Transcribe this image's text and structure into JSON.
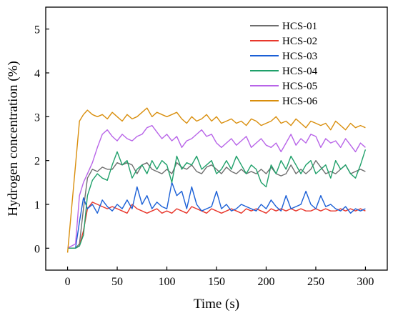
{
  "chart_data": {
    "type": "line",
    "title": "",
    "xlabel": "Time (s)",
    "ylabel": "Hydrogen concentration (%)",
    "xlim": [
      -22,
      322
    ],
    "ylim": [
      -0.5,
      5.5
    ],
    "xticks": [
      0,
      50,
      100,
      150,
      200,
      250,
      300
    ],
    "yticks": [
      0,
      1,
      2,
      3,
      4,
      5
    ],
    "grid": false,
    "legend_position": "top-right",
    "series": [
      {
        "name": "HCS-01",
        "color": "#6e6e6e",
        "x": [
          0,
          8,
          12,
          16,
          20,
          25,
          30,
          35,
          40,
          45,
          50,
          55,
          60,
          65,
          70,
          75,
          80,
          85,
          90,
          95,
          100,
          105,
          110,
          115,
          120,
          125,
          130,
          135,
          140,
          145,
          150,
          155,
          160,
          165,
          170,
          175,
          180,
          185,
          190,
          195,
          200,
          205,
          210,
          215,
          220,
          225,
          230,
          235,
          240,
          245,
          250,
          255,
          260,
          265,
          270,
          275,
          280,
          285,
          290,
          295,
          300
        ],
        "y": [
          0,
          0,
          0.1,
          0.9,
          1.6,
          1.8,
          1.75,
          1.85,
          1.8,
          1.8,
          1.95,
          1.9,
          1.95,
          1.9,
          1.7,
          1.9,
          1.95,
          1.8,
          1.75,
          1.7,
          1.8,
          1.7,
          1.95,
          1.85,
          1.8,
          1.9,
          1.75,
          1.7,
          1.85,
          1.9,
          1.8,
          1.7,
          1.85,
          1.75,
          1.7,
          1.8,
          1.7,
          1.75,
          1.7,
          1.8,
          1.7,
          1.85,
          1.7,
          1.65,
          1.7,
          1.9,
          1.7,
          1.8,
          1.7,
          1.8,
          2.0,
          1.85,
          1.7,
          1.75,
          1.7,
          1.8,
          1.9,
          1.7,
          1.75,
          1.8,
          1.75
        ]
      },
      {
        "name": "HCS-02",
        "color": "#e8372c",
        "x": [
          0,
          8,
          12,
          16,
          20,
          25,
          30,
          35,
          40,
          45,
          50,
          55,
          60,
          65,
          70,
          75,
          80,
          85,
          90,
          95,
          100,
          105,
          110,
          115,
          120,
          125,
          130,
          135,
          140,
          145,
          150,
          155,
          160,
          165,
          170,
          175,
          180,
          185,
          190,
          195,
          200,
          205,
          210,
          215,
          220,
          225,
          230,
          235,
          240,
          245,
          250,
          255,
          260,
          265,
          270,
          275,
          280,
          285,
          290,
          295,
          300
        ],
        "y": [
          0,
          0,
          0.05,
          0.4,
          0.9,
          1.05,
          1.0,
          0.95,
          0.9,
          0.95,
          0.9,
          0.85,
          0.8,
          1.0,
          0.9,
          0.85,
          0.8,
          0.85,
          0.9,
          0.8,
          0.85,
          0.8,
          0.9,
          0.85,
          0.8,
          0.95,
          0.9,
          0.85,
          0.8,
          0.9,
          0.85,
          0.8,
          0.85,
          0.9,
          0.85,
          0.8,
          0.9,
          0.85,
          0.9,
          0.85,
          0.8,
          0.9,
          0.85,
          0.9,
          0.85,
          0.9,
          0.85,
          0.9,
          0.85,
          0.85,
          0.9,
          0.85,
          0.9,
          0.85,
          0.85,
          0.9,
          0.85,
          0.9,
          0.85,
          0.9,
          0.85
        ]
      },
      {
        "name": "HCS-03",
        "color": "#1a5fd6",
        "x": [
          0,
          8,
          12,
          16,
          20,
          25,
          30,
          35,
          40,
          45,
          50,
          55,
          60,
          65,
          70,
          75,
          80,
          85,
          90,
          95,
          100,
          105,
          110,
          115,
          120,
          125,
          130,
          135,
          140,
          145,
          150,
          155,
          160,
          165,
          170,
          175,
          180,
          185,
          190,
          195,
          200,
          205,
          210,
          215,
          220,
          225,
          230,
          235,
          240,
          245,
          250,
          255,
          260,
          265,
          270,
          275,
          280,
          285,
          290,
          295,
          300
        ],
        "y": [
          0,
          0,
          0.6,
          1.15,
          0.9,
          1.0,
          0.8,
          1.1,
          0.95,
          0.85,
          1.0,
          0.9,
          1.1,
          0.9,
          1.4,
          1.0,
          1.2,
          0.9,
          1.05,
          0.95,
          0.9,
          1.5,
          1.2,
          1.3,
          0.9,
          1.4,
          1.0,
          0.85,
          0.9,
          0.95,
          1.3,
          0.9,
          1.0,
          0.85,
          0.9,
          1.0,
          0.95,
          0.9,
          0.85,
          1.0,
          0.9,
          1.1,
          0.95,
          0.85,
          1.2,
          0.9,
          0.95,
          1.0,
          1.3,
          1.0,
          0.9,
          1.2,
          0.95,
          1.0,
          0.9,
          0.85,
          0.95,
          0.8,
          0.9,
          0.85,
          0.9
        ]
      },
      {
        "name": "HCS-04",
        "color": "#1fa06a",
        "x": [
          0,
          8,
          12,
          16,
          20,
          25,
          30,
          35,
          40,
          45,
          50,
          55,
          60,
          65,
          70,
          75,
          80,
          85,
          90,
          95,
          100,
          105,
          110,
          115,
          120,
          125,
          130,
          135,
          140,
          145,
          150,
          155,
          160,
          165,
          170,
          175,
          180,
          185,
          190,
          195,
          200,
          205,
          210,
          215,
          220,
          225,
          230,
          235,
          240,
          245,
          250,
          255,
          260,
          265,
          270,
          275,
          280,
          285,
          290,
          295,
          300
        ],
        "y": [
          0,
          0,
          0.05,
          0.3,
          1.2,
          1.55,
          1.7,
          1.6,
          1.55,
          1.9,
          2.2,
          1.9,
          2.0,
          1.6,
          1.8,
          1.9,
          1.7,
          2.0,
          1.8,
          2.0,
          1.9,
          1.5,
          2.1,
          1.8,
          1.95,
          1.9,
          2.1,
          1.8,
          1.9,
          2.0,
          1.7,
          1.8,
          2.0,
          1.8,
          2.1,
          1.9,
          1.7,
          1.9,
          1.8,
          1.5,
          1.4,
          1.9,
          1.7,
          2.0,
          1.8,
          2.1,
          1.9,
          1.7,
          1.9,
          2.0,
          1.7,
          1.8,
          1.9,
          1.6,
          2.0,
          1.8,
          1.9,
          1.7,
          1.6,
          1.9,
          2.25
        ]
      },
      {
        "name": "HCS-05",
        "color": "#b864e8",
        "x": [
          0,
          8,
          12,
          16,
          20,
          25,
          30,
          35,
          40,
          45,
          50,
          55,
          60,
          65,
          70,
          75,
          80,
          85,
          90,
          95,
          100,
          105,
          110,
          115,
          120,
          125,
          130,
          135,
          140,
          145,
          150,
          155,
          160,
          165,
          170,
          175,
          180,
          185,
          190,
          195,
          200,
          205,
          210,
          215,
          220,
          225,
          230,
          235,
          240,
          245,
          250,
          255,
          260,
          265,
          270,
          275,
          280,
          285,
          290,
          295,
          300
        ],
        "y": [
          0,
          0.1,
          1.2,
          1.5,
          1.7,
          1.95,
          2.3,
          2.6,
          2.7,
          2.55,
          2.45,
          2.6,
          2.5,
          2.45,
          2.55,
          2.6,
          2.75,
          2.8,
          2.65,
          2.5,
          2.6,
          2.45,
          2.55,
          2.3,
          2.45,
          2.5,
          2.6,
          2.7,
          2.55,
          2.6,
          2.4,
          2.3,
          2.4,
          2.5,
          2.35,
          2.45,
          2.55,
          2.3,
          2.4,
          2.5,
          2.35,
          2.3,
          2.4,
          2.2,
          2.4,
          2.6,
          2.35,
          2.5,
          2.4,
          2.6,
          2.55,
          2.3,
          2.5,
          2.4,
          2.45,
          2.3,
          2.5,
          2.35,
          2.2,
          2.4,
          2.3
        ]
      },
      {
        "name": "HCS-06",
        "color": "#d98e0c",
        "x": [
          0,
          8,
          12,
          16,
          20,
          25,
          30,
          35,
          40,
          45,
          50,
          55,
          60,
          65,
          70,
          75,
          80,
          85,
          90,
          95,
          100,
          105,
          110,
          115,
          120,
          125,
          130,
          135,
          140,
          145,
          150,
          155,
          160,
          165,
          170,
          175,
          180,
          185,
          190,
          195,
          200,
          205,
          210,
          215,
          220,
          225,
          230,
          235,
          240,
          245,
          250,
          255,
          260,
          265,
          270,
          275,
          280,
          285,
          290,
          295,
          300
        ],
        "y": [
          -0.1,
          1.9,
          2.9,
          3.05,
          3.15,
          3.05,
          3.0,
          3.05,
          2.95,
          3.1,
          3.0,
          2.9,
          3.05,
          2.95,
          3.0,
          3.1,
          3.2,
          3.0,
          3.1,
          3.05,
          3.0,
          3.05,
          3.1,
          2.95,
          2.85,
          3.0,
          2.9,
          2.95,
          3.05,
          2.9,
          3.0,
          2.85,
          2.9,
          2.95,
          2.85,
          2.9,
          2.8,
          2.95,
          2.9,
          2.8,
          2.85,
          2.9,
          3.0,
          2.85,
          2.9,
          2.8,
          2.95,
          2.85,
          2.75,
          2.9,
          2.85,
          2.8,
          2.85,
          2.7,
          2.9,
          2.8,
          2.7,
          2.85,
          2.75,
          2.8,
          2.75
        ]
      }
    ]
  }
}
